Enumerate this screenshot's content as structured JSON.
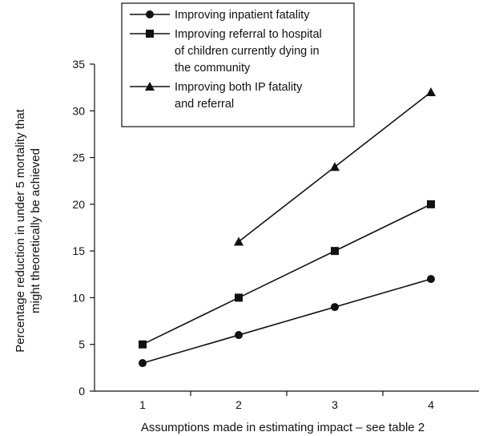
{
  "chart_data": {
    "type": "line",
    "xlabel": "Assumptions made in estimating impact – see table 2",
    "ylabel_lines": [
      "Percentage reduction in under 5 mortality that",
      "might theoretically be achieved"
    ],
    "x": [
      1,
      2,
      3,
      4
    ],
    "xlim": [
      0.5,
      4.5
    ],
    "ylim": [
      0,
      35
    ],
    "xticks": [
      1,
      2,
      3,
      4
    ],
    "yticks": [
      0,
      5,
      10,
      15,
      20,
      25,
      30,
      35
    ],
    "grid": false,
    "legend_position": "top-left",
    "series": [
      {
        "name_lines": [
          "Improving inpatient fatality"
        ],
        "marker": "circle",
        "x": [
          1,
          2,
          3,
          4
        ],
        "values": [
          3,
          6,
          9,
          12
        ]
      },
      {
        "name_lines": [
          "Improving referral to hospital",
          "of children currently dying in",
          "the community"
        ],
        "marker": "square",
        "x": [
          1,
          2,
          3,
          4
        ],
        "values": [
          5,
          10,
          15,
          20
        ]
      },
      {
        "name_lines": [
          "Improving both IP fatality",
          "and referral"
        ],
        "marker": "triangle",
        "x": [
          2,
          3,
          4
        ],
        "values": [
          16,
          24,
          32
        ]
      }
    ]
  }
}
